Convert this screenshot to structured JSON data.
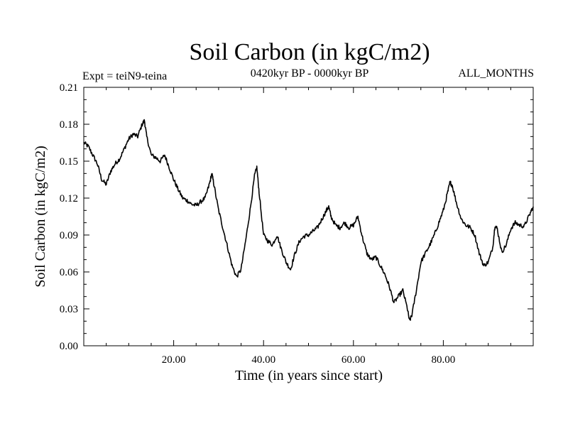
{
  "chart_data": {
    "type": "line",
    "title": "Soil Carbon (in kgC/m2)",
    "subtitle_left": "Expt = teiN9-teina",
    "subtitle_center": "0420kyr BP - 0000kyr BP",
    "subtitle_right": "ALL_MONTHS",
    "xlabel": "Time (in years since start)",
    "ylabel": "Soil Carbon (in kgC/m2)",
    "xlim": [
      0,
      100
    ],
    "ylim": [
      0,
      0.21
    ],
    "xticks": [
      20,
      40,
      60,
      80
    ],
    "xtick_labels": [
      "20.00",
      "40.00",
      "60.00",
      "80.00"
    ],
    "yticks": [
      0,
      0.03,
      0.06,
      0.09,
      0.12,
      0.15,
      0.18,
      0.21
    ],
    "ytick_labels": [
      "0.00",
      "0.03",
      "0.06",
      "0.09",
      "0.12",
      "0.15",
      "0.18",
      "0.21"
    ],
    "series": [
      {
        "name": "Soil Carbon",
        "color": "#000000",
        "x": [
          0,
          1,
          2,
          3,
          4,
          5,
          6,
          7,
          8,
          9,
          10,
          11,
          12,
          13,
          13.5,
          14,
          15,
          16,
          17,
          18,
          19,
          20,
          21,
          22,
          23,
          24,
          25,
          26,
          27,
          28,
          28.5,
          29,
          30,
          31,
          32,
          33,
          34,
          35,
          36,
          37,
          38,
          38.5,
          39,
          40,
          41,
          42,
          43,
          44,
          45,
          46,
          47,
          48,
          49,
          50,
          51,
          52,
          53,
          54,
          54.5,
          55,
          56,
          57,
          58,
          59,
          60,
          61,
          62,
          63,
          64,
          65,
          66,
          67,
          68,
          69,
          70,
          71,
          72,
          72.5,
          73,
          74,
          75,
          76,
          77,
          78,
          79,
          80,
          81,
          81.5,
          82,
          83,
          84,
          85,
          86,
          87,
          88,
          89,
          90,
          91,
          91.5,
          92,
          93,
          94,
          95,
          96,
          97,
          98,
          99,
          100
        ],
        "values": [
          0.165,
          0.162,
          0.155,
          0.148,
          0.135,
          0.131,
          0.142,
          0.148,
          0.152,
          0.16,
          0.168,
          0.172,
          0.17,
          0.18,
          0.183,
          0.17,
          0.155,
          0.153,
          0.15,
          0.155,
          0.145,
          0.135,
          0.127,
          0.12,
          0.118,
          0.115,
          0.114,
          0.117,
          0.12,
          0.132,
          0.14,
          0.13,
          0.11,
          0.095,
          0.08,
          0.065,
          0.056,
          0.062,
          0.085,
          0.11,
          0.138,
          0.145,
          0.125,
          0.09,
          0.085,
          0.082,
          0.09,
          0.078,
          0.068,
          0.062,
          0.075,
          0.085,
          0.089,
          0.09,
          0.093,
          0.096,
          0.103,
          0.11,
          0.113,
          0.105,
          0.098,
          0.096,
          0.1,
          0.096,
          0.098,
          0.105,
          0.088,
          0.075,
          0.07,
          0.072,
          0.065,
          0.058,
          0.048,
          0.035,
          0.04,
          0.045,
          0.03,
          0.02,
          0.025,
          0.045,
          0.068,
          0.075,
          0.082,
          0.09,
          0.1,
          0.11,
          0.125,
          0.133,
          0.13,
          0.115,
          0.103,
          0.098,
          0.096,
          0.09,
          0.075,
          0.065,
          0.068,
          0.08,
          0.098,
          0.095,
          0.076,
          0.082,
          0.095,
          0.1,
          0.098,
          0.097,
          0.105,
          0.113
        ]
      }
    ]
  }
}
